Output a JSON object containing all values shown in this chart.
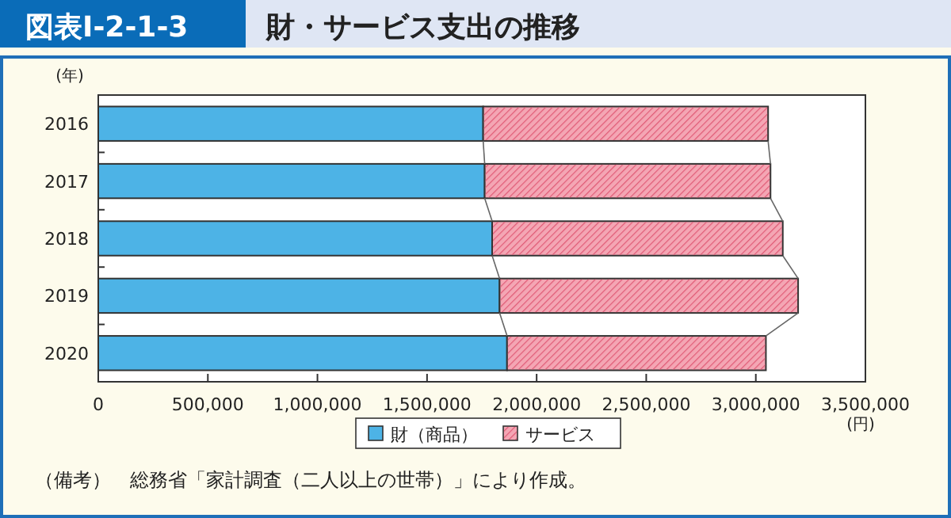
{
  "chart_data": {
    "type": "bar",
    "orientation": "horizontal",
    "stacked": true,
    "title": "図表Ⅰ-2-1-3",
    "subtitle": "財・サービス支出の推移",
    "ylabel": "(年)",
    "xlabel": "(円)",
    "categories": [
      "2016",
      "2017",
      "2018",
      "2019",
      "2020"
    ],
    "series": [
      {
        "name": "財（商品）",
        "color": "#4db3e6",
        "values": [
          1756000,
          1763000,
          1797000,
          1831000,
          1865000
        ]
      },
      {
        "name": "サービス",
        "color": "#f4a6b4",
        "values": [
          1300000,
          1304000,
          1326000,
          1362000,
          1181000
        ]
      }
    ],
    "xlim": [
      0,
      3500000
    ],
    "xticks": [
      0,
      {
        "value": 500000,
        "label": "500,000"
      },
      {
        "value": 1000000,
        "label": "1,000,000"
      },
      {
        "value": 1500000,
        "label": "1,500,000"
      },
      {
        "value": 2000000,
        "label": "2,000,000"
      },
      {
        "value": 2500000,
        "label": "2,500,000"
      },
      {
        "value": 3000000,
        "label": "3,000,000"
      },
      {
        "value": 3500000,
        "label": "3,500,000"
      }
    ],
    "legend": "bottom",
    "annotations": [
      "（備考）　総務省「家計調査（二人以上の世帯）」により作成。"
    ]
  }
}
